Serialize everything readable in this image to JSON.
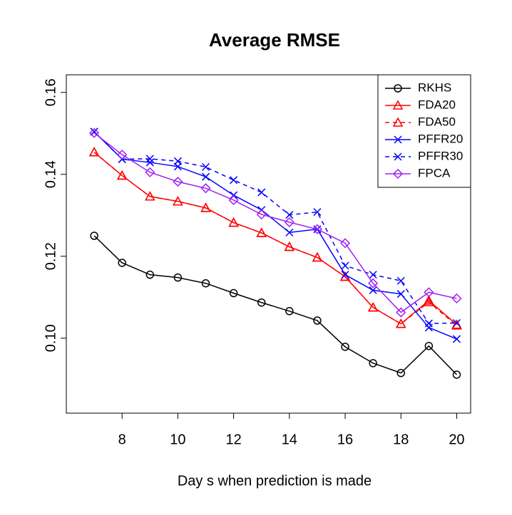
{
  "chart_data": {
    "type": "line",
    "title": "Average RMSE",
    "x_label": "Day s when prediction is made",
    "x": [
      7,
      8,
      9,
      10,
      11,
      12,
      13,
      14,
      15,
      16,
      17,
      18,
      19,
      20
    ],
    "xlim": [
      6,
      20.5
    ],
    "xticks": [
      8,
      10,
      12,
      14,
      16,
      18,
      20
    ],
    "ylim": [
      0.0817,
      0.1643
    ],
    "yticks": [
      {
        "value": 0.1,
        "label": "0.10"
      },
      {
        "value": 0.12,
        "label": "0.12"
      },
      {
        "value": 0.14,
        "label": "0.14"
      },
      {
        "value": 0.16,
        "label": "0.16"
      }
    ],
    "legend": "top-right",
    "series": [
      {
        "name": "RKHS",
        "color": "#000000",
        "marker": "circle",
        "dashed": false,
        "values": [
          0.125,
          0.1184,
          0.1155,
          0.1148,
          0.1134,
          0.111,
          0.1087,
          0.1066,
          0.1043,
          0.0979,
          0.0939,
          0.0915,
          0.0981,
          0.0911
        ]
      },
      {
        "name": "FDA20",
        "color": "#ff0000",
        "marker": "triangle",
        "dashed": false,
        "values": [
          0.1454,
          0.1397,
          0.1346,
          0.1334,
          0.1318,
          0.1282,
          0.1257,
          0.1223,
          0.1197,
          0.115,
          0.1075,
          0.1035,
          0.1092,
          0.1033
        ]
      },
      {
        "name": "FDA50",
        "color": "#ff0000",
        "marker": "triangle",
        "dashed": true,
        "values": [
          0.1454,
          0.1397,
          0.1346,
          0.1334,
          0.1318,
          0.1282,
          0.1257,
          0.1223,
          0.1197,
          0.115,
          0.1075,
          0.1035,
          0.1088,
          0.1031
        ]
      },
      {
        "name": "PFFR20",
        "color": "#0000ff",
        "marker": "x",
        "dashed": false,
        "values": [
          0.1504,
          0.1437,
          0.1429,
          0.1419,
          0.1394,
          0.1349,
          0.1313,
          0.1258,
          0.1266,
          0.1155,
          0.1117,
          0.1108,
          0.1026,
          0.0998
        ]
      },
      {
        "name": "PFFR30",
        "color": "#0000ff",
        "marker": "x",
        "dashed": true,
        "values": [
          0.1504,
          0.1437,
          0.1438,
          0.1432,
          0.1418,
          0.1386,
          0.1356,
          0.1301,
          0.1308,
          0.1177,
          0.1155,
          0.114,
          0.1036,
          0.1037
        ]
      },
      {
        "name": "FPCA",
        "color": "#a020f0",
        "marker": "diamond",
        "dashed": false,
        "values": [
          0.1501,
          0.1448,
          0.1405,
          0.1382,
          0.1366,
          0.1337,
          0.1302,
          0.1283,
          0.1266,
          0.1232,
          0.1134,
          0.1063,
          0.1112,
          0.1097
        ]
      }
    ]
  }
}
